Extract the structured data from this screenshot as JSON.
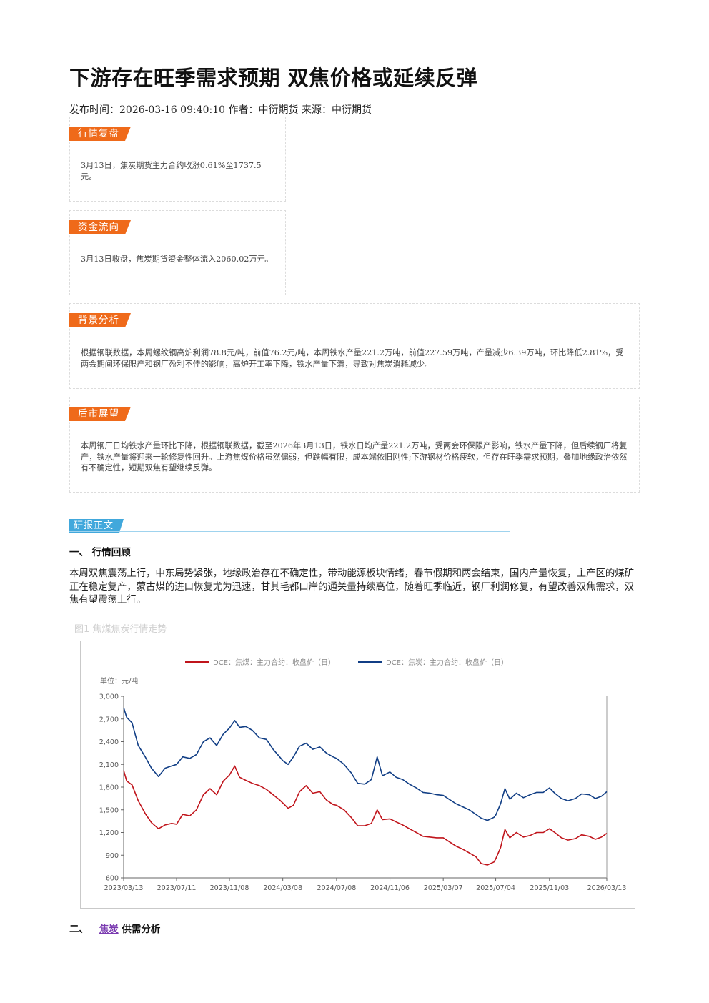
{
  "article": {
    "title": "下游存在旺季需求预期 双焦价格或延续反弹",
    "meta": "发布时间：2026-03-16 09:40:10 作者：中衍期货 来源：中衍期货"
  },
  "boxes": [
    {
      "tag": "行情复盘",
      "text": "3月13日，焦炭期货主力合约收涨0.61%至1737.5元。"
    },
    {
      "tag": "资金流向",
      "text": "3月13日收盘，焦炭期货资金整体流入2060.02万元。"
    },
    {
      "tag": "背景分析",
      "text": "根据钢联数据，本周螺纹钢高炉利润78.8元/吨，前值76.2元/吨，本周铁水产量221.2万吨，前值227.59万吨，产量减少6.39万吨，环比降低2.81%，受两会期间环保限产和钢厂盈利不佳的影响，高炉开工率下降，铁水产量下滑，导致对焦炭消耗减少。"
    },
    {
      "tag": "后市展望",
      "text": "本周钢厂日均铁水产量环比下降，根据钢联数据，截至2026年3月13日，铁水日均产量221.2万吨，受两会环保限产影响，铁水产量下降，但后续钢厂将复产，铁水产量将迎来一轮修复性回升。上游焦煤价格虽然偏弱，但跌幅有限，成本端依旧刚性;下游钢材价格疲软，但存在旺季需求预期，叠加地缘政治依然有不确定性，短期双焦有望继续反弹。"
    }
  ],
  "section": {
    "tag": "研报正文",
    "h1": "一、 行情回顾",
    "para": "本周双焦震荡上行，中东局势紧张，地缘政治存在不确定性，带动能源板块情绪，春节假期和两会结束，国内产量恢复，主产区的煤矿正在稳定复产，蒙古煤的进口恢复尤为迅速，甘其毛都口岸的通关量持续高位，随着旺季临近，钢厂利润修复，有望改善双焦需求，双焦有望震荡上行。",
    "fig_caption": "图1  焦煤焦炭行情走势",
    "h2_prefix": "二、",
    "h2_link": "焦炭",
    "h2_suffix": "供需分析"
  },
  "colors": {
    "orange": "#ef6a1a",
    "blue_tag": "#41a8dc",
    "coking_coal": "#c0141b",
    "coke": "#113e85"
  },
  "chart_data": {
    "type": "line",
    "unit_label": "单位：元/吨",
    "ylim": [
      600,
      3000
    ],
    "yticks": [
      "3,000",
      "2,700",
      "2,400",
      "2,100",
      "1,800",
      "1,500",
      "1,200",
      "900",
      "600"
    ],
    "ytick_values": [
      3000,
      2700,
      2400,
      2100,
      1800,
      1500,
      1200,
      900,
      600
    ],
    "x_tick_labels": [
      "2023/03/13",
      "2023/07/11",
      "2023/11/08",
      "2024/03/08",
      "2024/07/08",
      "2024/11/06",
      "2025/03/07",
      "2025/07/04",
      "2025/11/03",
      "2026/03/13"
    ],
    "x_tick_dates": [
      "2023-03-13",
      "2023-07-11",
      "2023-11-08",
      "2024-03-08",
      "2024-07-08",
      "2024-11-06",
      "2025-03-07",
      "2025-07-04",
      "2025-11-03",
      "2026-03-13"
    ],
    "series": [
      {
        "name": "DCE：焦煤：主力合约：收盘价（日）",
        "color": "#c0141b",
        "points": [
          [
            "2023-03-13",
            2020
          ],
          [
            "2023-03-20",
            1880
          ],
          [
            "2023-04-01",
            1830
          ],
          [
            "2023-04-15",
            1620
          ],
          [
            "2023-05-01",
            1450
          ],
          [
            "2023-05-15",
            1330
          ],
          [
            "2023-05-31",
            1250
          ],
          [
            "2023-06-15",
            1300
          ],
          [
            "2023-06-30",
            1320
          ],
          [
            "2023-07-11",
            1310
          ],
          [
            "2023-07-25",
            1440
          ],
          [
            "2023-08-10",
            1420
          ],
          [
            "2023-08-25",
            1500
          ],
          [
            "2023-09-10",
            1700
          ],
          [
            "2023-09-25",
            1780
          ],
          [
            "2023-10-10",
            1700
          ],
          [
            "2023-10-25",
            1880
          ],
          [
            "2023-11-08",
            1960
          ],
          [
            "2023-11-20",
            2080
          ],
          [
            "2023-12-01",
            1930
          ],
          [
            "2023-12-15",
            1890
          ],
          [
            "2023-12-30",
            1850
          ],
          [
            "2024-01-15",
            1820
          ],
          [
            "2024-01-31",
            1770
          ],
          [
            "2024-02-15",
            1700
          ],
          [
            "2024-03-01",
            1630
          ],
          [
            "2024-03-08",
            1590
          ],
          [
            "2024-03-20",
            1520
          ],
          [
            "2024-04-01",
            1560
          ],
          [
            "2024-04-15",
            1740
          ],
          [
            "2024-04-30",
            1820
          ],
          [
            "2024-05-15",
            1720
          ],
          [
            "2024-05-31",
            1740
          ],
          [
            "2024-06-15",
            1630
          ],
          [
            "2024-06-30",
            1570
          ],
          [
            "2024-07-08",
            1560
          ],
          [
            "2024-07-25",
            1500
          ],
          [
            "2024-08-10",
            1400
          ],
          [
            "2024-08-25",
            1290
          ],
          [
            "2024-09-10",
            1290
          ],
          [
            "2024-09-25",
            1320
          ],
          [
            "2024-10-08",
            1500
          ],
          [
            "2024-10-20",
            1370
          ],
          [
            "2024-11-06",
            1380
          ],
          [
            "2024-11-20",
            1340
          ],
          [
            "2024-12-05",
            1300
          ],
          [
            "2024-12-20",
            1250
          ],
          [
            "2025-01-05",
            1200
          ],
          [
            "2025-01-20",
            1150
          ],
          [
            "2025-02-05",
            1140
          ],
          [
            "2025-02-20",
            1130
          ],
          [
            "2025-03-07",
            1130
          ],
          [
            "2025-03-20",
            1080
          ],
          [
            "2025-04-05",
            1020
          ],
          [
            "2025-04-20",
            980
          ],
          [
            "2025-05-05",
            930
          ],
          [
            "2025-05-20",
            880
          ],
          [
            "2025-06-01",
            790
          ],
          [
            "2025-06-15",
            770
          ],
          [
            "2025-06-30",
            810
          ],
          [
            "2025-07-04",
            850
          ],
          [
            "2025-07-15",
            1000
          ],
          [
            "2025-07-25",
            1240
          ],
          [
            "2025-08-05",
            1130
          ],
          [
            "2025-08-20",
            1200
          ],
          [
            "2025-09-05",
            1140
          ],
          [
            "2025-09-20",
            1160
          ],
          [
            "2025-10-05",
            1200
          ],
          [
            "2025-10-20",
            1200
          ],
          [
            "2025-11-03",
            1250
          ],
          [
            "2025-11-15",
            1200
          ],
          [
            "2025-11-30",
            1130
          ],
          [
            "2025-12-15",
            1100
          ],
          [
            "2026-01-01",
            1120
          ],
          [
            "2026-01-15",
            1170
          ],
          [
            "2026-02-01",
            1150
          ],
          [
            "2026-02-15",
            1110
          ],
          [
            "2026-03-01",
            1140
          ],
          [
            "2026-03-13",
            1190
          ]
        ]
      },
      {
        "name": "DCE：焦炭：主力合约：收盘价（日）",
        "color": "#113e85",
        "points": [
          [
            "2023-03-13",
            2850
          ],
          [
            "2023-03-20",
            2720
          ],
          [
            "2023-04-01",
            2650
          ],
          [
            "2023-04-15",
            2350
          ],
          [
            "2023-05-01",
            2200
          ],
          [
            "2023-05-15",
            2050
          ],
          [
            "2023-05-31",
            1940
          ],
          [
            "2023-06-15",
            2050
          ],
          [
            "2023-06-30",
            2080
          ],
          [
            "2023-07-11",
            2100
          ],
          [
            "2023-07-25",
            2200
          ],
          [
            "2023-08-10",
            2180
          ],
          [
            "2023-08-25",
            2230
          ],
          [
            "2023-09-10",
            2400
          ],
          [
            "2023-09-25",
            2450
          ],
          [
            "2023-10-10",
            2350
          ],
          [
            "2023-10-25",
            2500
          ],
          [
            "2023-11-08",
            2580
          ],
          [
            "2023-11-20",
            2680
          ],
          [
            "2023-12-01",
            2590
          ],
          [
            "2023-12-15",
            2600
          ],
          [
            "2023-12-30",
            2550
          ],
          [
            "2024-01-15",
            2450
          ],
          [
            "2024-01-31",
            2430
          ],
          [
            "2024-02-15",
            2300
          ],
          [
            "2024-03-01",
            2200
          ],
          [
            "2024-03-08",
            2150
          ],
          [
            "2024-03-20",
            2100
          ],
          [
            "2024-04-01",
            2200
          ],
          [
            "2024-04-15",
            2340
          ],
          [
            "2024-04-30",
            2380
          ],
          [
            "2024-05-15",
            2300
          ],
          [
            "2024-05-31",
            2330
          ],
          [
            "2024-06-15",
            2250
          ],
          [
            "2024-06-30",
            2200
          ],
          [
            "2024-07-08",
            2180
          ],
          [
            "2024-07-25",
            2100
          ],
          [
            "2024-08-10",
            1990
          ],
          [
            "2024-08-25",
            1850
          ],
          [
            "2024-09-10",
            1840
          ],
          [
            "2024-09-25",
            1900
          ],
          [
            "2024-10-08",
            2200
          ],
          [
            "2024-10-20",
            1950
          ],
          [
            "2024-11-06",
            2000
          ],
          [
            "2024-11-20",
            1930
          ],
          [
            "2024-12-05",
            1900
          ],
          [
            "2024-12-20",
            1840
          ],
          [
            "2025-01-05",
            1790
          ],
          [
            "2025-01-20",
            1730
          ],
          [
            "2025-02-05",
            1720
          ],
          [
            "2025-02-20",
            1700
          ],
          [
            "2025-03-07",
            1690
          ],
          [
            "2025-03-20",
            1640
          ],
          [
            "2025-04-05",
            1580
          ],
          [
            "2025-04-20",
            1540
          ],
          [
            "2025-05-05",
            1500
          ],
          [
            "2025-05-20",
            1440
          ],
          [
            "2025-06-01",
            1390
          ],
          [
            "2025-06-15",
            1360
          ],
          [
            "2025-06-30",
            1400
          ],
          [
            "2025-07-04",
            1430
          ],
          [
            "2025-07-15",
            1580
          ],
          [
            "2025-07-25",
            1780
          ],
          [
            "2025-08-05",
            1640
          ],
          [
            "2025-08-20",
            1720
          ],
          [
            "2025-09-05",
            1660
          ],
          [
            "2025-09-20",
            1700
          ],
          [
            "2025-10-05",
            1730
          ],
          [
            "2025-10-20",
            1730
          ],
          [
            "2025-11-03",
            1790
          ],
          [
            "2025-11-15",
            1720
          ],
          [
            "2025-11-30",
            1650
          ],
          [
            "2025-12-15",
            1620
          ],
          [
            "2026-01-01",
            1650
          ],
          [
            "2026-01-15",
            1710
          ],
          [
            "2026-02-01",
            1700
          ],
          [
            "2026-02-15",
            1650
          ],
          [
            "2026-03-01",
            1680
          ],
          [
            "2026-03-13",
            1740
          ]
        ]
      }
    ]
  }
}
